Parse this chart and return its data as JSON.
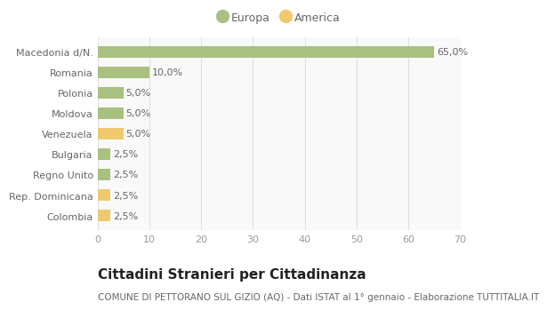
{
  "categories": [
    "Colombia",
    "Rep. Dominicana",
    "Regno Unito",
    "Bulgaria",
    "Venezuela",
    "Moldova",
    "Polonia",
    "Romania",
    "Macedonia d/N."
  ],
  "values": [
    2.5,
    2.5,
    2.5,
    2.5,
    5.0,
    5.0,
    5.0,
    10.0,
    65.0
  ],
  "colors": [
    "#f0c96e",
    "#f0c96e",
    "#a8c080",
    "#a8c080",
    "#f0c96e",
    "#a8c080",
    "#a8c080",
    "#a8c080",
    "#a8c080"
  ],
  "labels": [
    "2,5%",
    "2,5%",
    "2,5%",
    "2,5%",
    "5,0%",
    "5,0%",
    "5,0%",
    "10,0%",
    "65,0%"
  ],
  "xlim": [
    0,
    70
  ],
  "xticks": [
    0,
    10,
    20,
    30,
    40,
    50,
    60,
    70
  ],
  "europa_color": "#a8c080",
  "america_color": "#f0c96e",
  "bg_color": "#ffffff",
  "plot_bg_color": "#f9f9f9",
  "grid_color": "#e0e0e0",
  "title": "Cittadini Stranieri per Cittadinanza",
  "subtitle": "COMUNE DI PETTORANO SUL GIZIO (AQ) - Dati ISTAT al 1° gennaio - Elaborazione TUTTITALIA.IT",
  "title_fontsize": 11,
  "subtitle_fontsize": 7.5,
  "label_fontsize": 8,
  "tick_fontsize": 8,
  "legend_fontsize": 9,
  "bar_height": 0.55
}
